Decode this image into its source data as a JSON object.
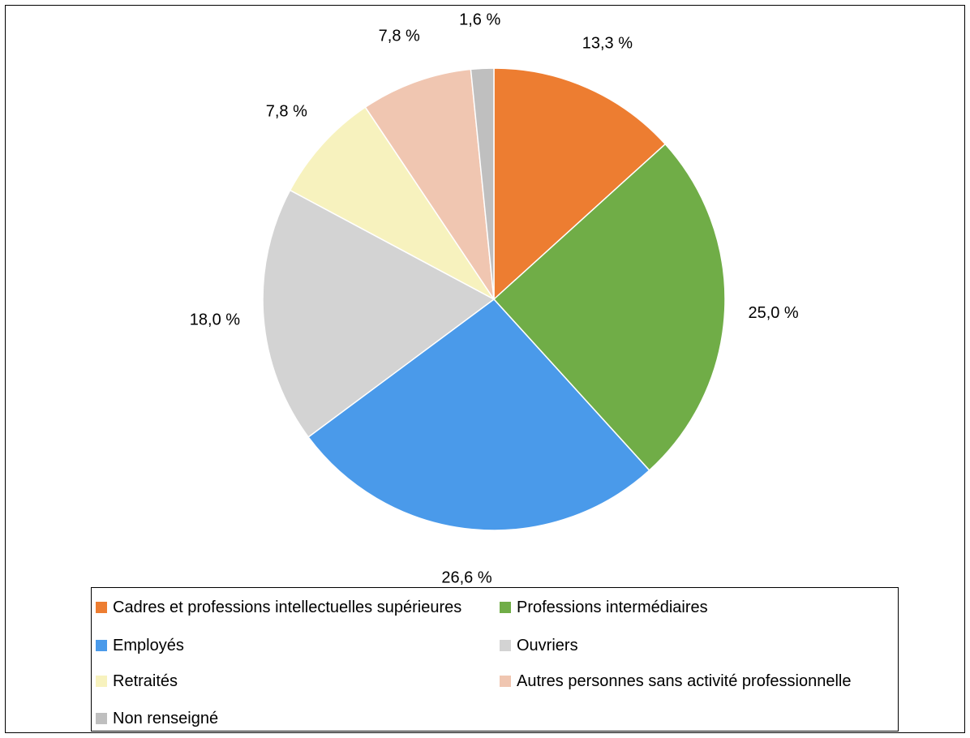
{
  "chart_data": {
    "type": "pie",
    "title": "",
    "start_angle_deg": 0,
    "direction": "clockwise",
    "legend_position": "bottom",
    "categories": [
      "Cadres et professions intellectuelles supérieures",
      "Professions intermédiaires",
      "Employés",
      "Ouvriers",
      "Retraités",
      "Autres personnes sans activité professionnelle",
      "Non renseigné"
    ],
    "values": [
      13.3,
      25.0,
      26.6,
      18.0,
      7.8,
      7.8,
      1.6
    ],
    "labels": [
      "13,3 %",
      "25,0 %",
      "26,6 %",
      "18,0 %",
      "7,8 %",
      "7,8 %",
      "1,6 %"
    ],
    "colors": [
      "#ED7D31",
      "#70AD47",
      "#4A9AEA",
      "#D3D3D3",
      "#F7F2BE",
      "#F0C6B1",
      "#BFBFBF"
    ]
  }
}
